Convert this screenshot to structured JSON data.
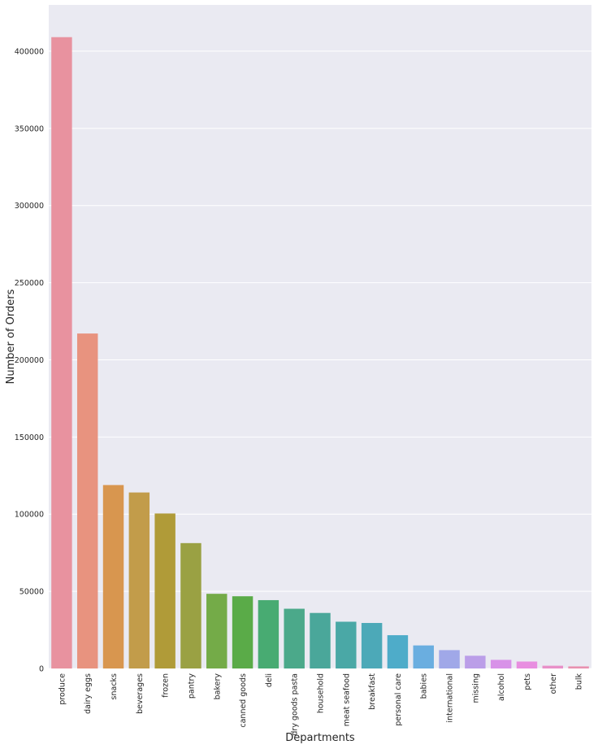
{
  "chart_data": {
    "type": "bar",
    "xlabel": "Departments",
    "ylabel": "Number of Orders",
    "categories": [
      "produce",
      "dairy eggs",
      "snacks",
      "beverages",
      "frozen",
      "pantry",
      "bakery",
      "canned goods",
      "deli",
      "dry goods pasta",
      "household",
      "meat seafood",
      "breakfast",
      "personal care",
      "babies",
      "international",
      "missing",
      "alcohol",
      "pets",
      "other",
      "bulk"
    ],
    "values": [
      409087,
      217051,
      118862,
      114046,
      100426,
      81242,
      48394,
      46799,
      44291,
      38713,
      35986,
      30307,
      29500,
      21570,
      14941,
      11902,
      8251,
      5598,
      4497,
      1795,
      1360
    ],
    "colors": [
      "#e8929f",
      "#e8937f",
      "#d8964f",
      "#c29c4a",
      "#b09b38",
      "#9aa143",
      "#74ab48",
      "#5aab48",
      "#48ab72",
      "#4ba98a",
      "#4aa79a",
      "#4aa8a6",
      "#4ca9b8",
      "#4eacc9",
      "#6aaee0",
      "#a0a8e8",
      "#bb9ee8",
      "#d892e8",
      "#e88ee0",
      "#e890c8",
      "#e892b0"
    ],
    "ylim": [
      0,
      430000
    ],
    "yticks": [
      0,
      50000,
      100000,
      150000,
      200000,
      250000,
      300000,
      350000,
      400000
    ],
    "grid": true,
    "background": "#eaeaf2"
  }
}
